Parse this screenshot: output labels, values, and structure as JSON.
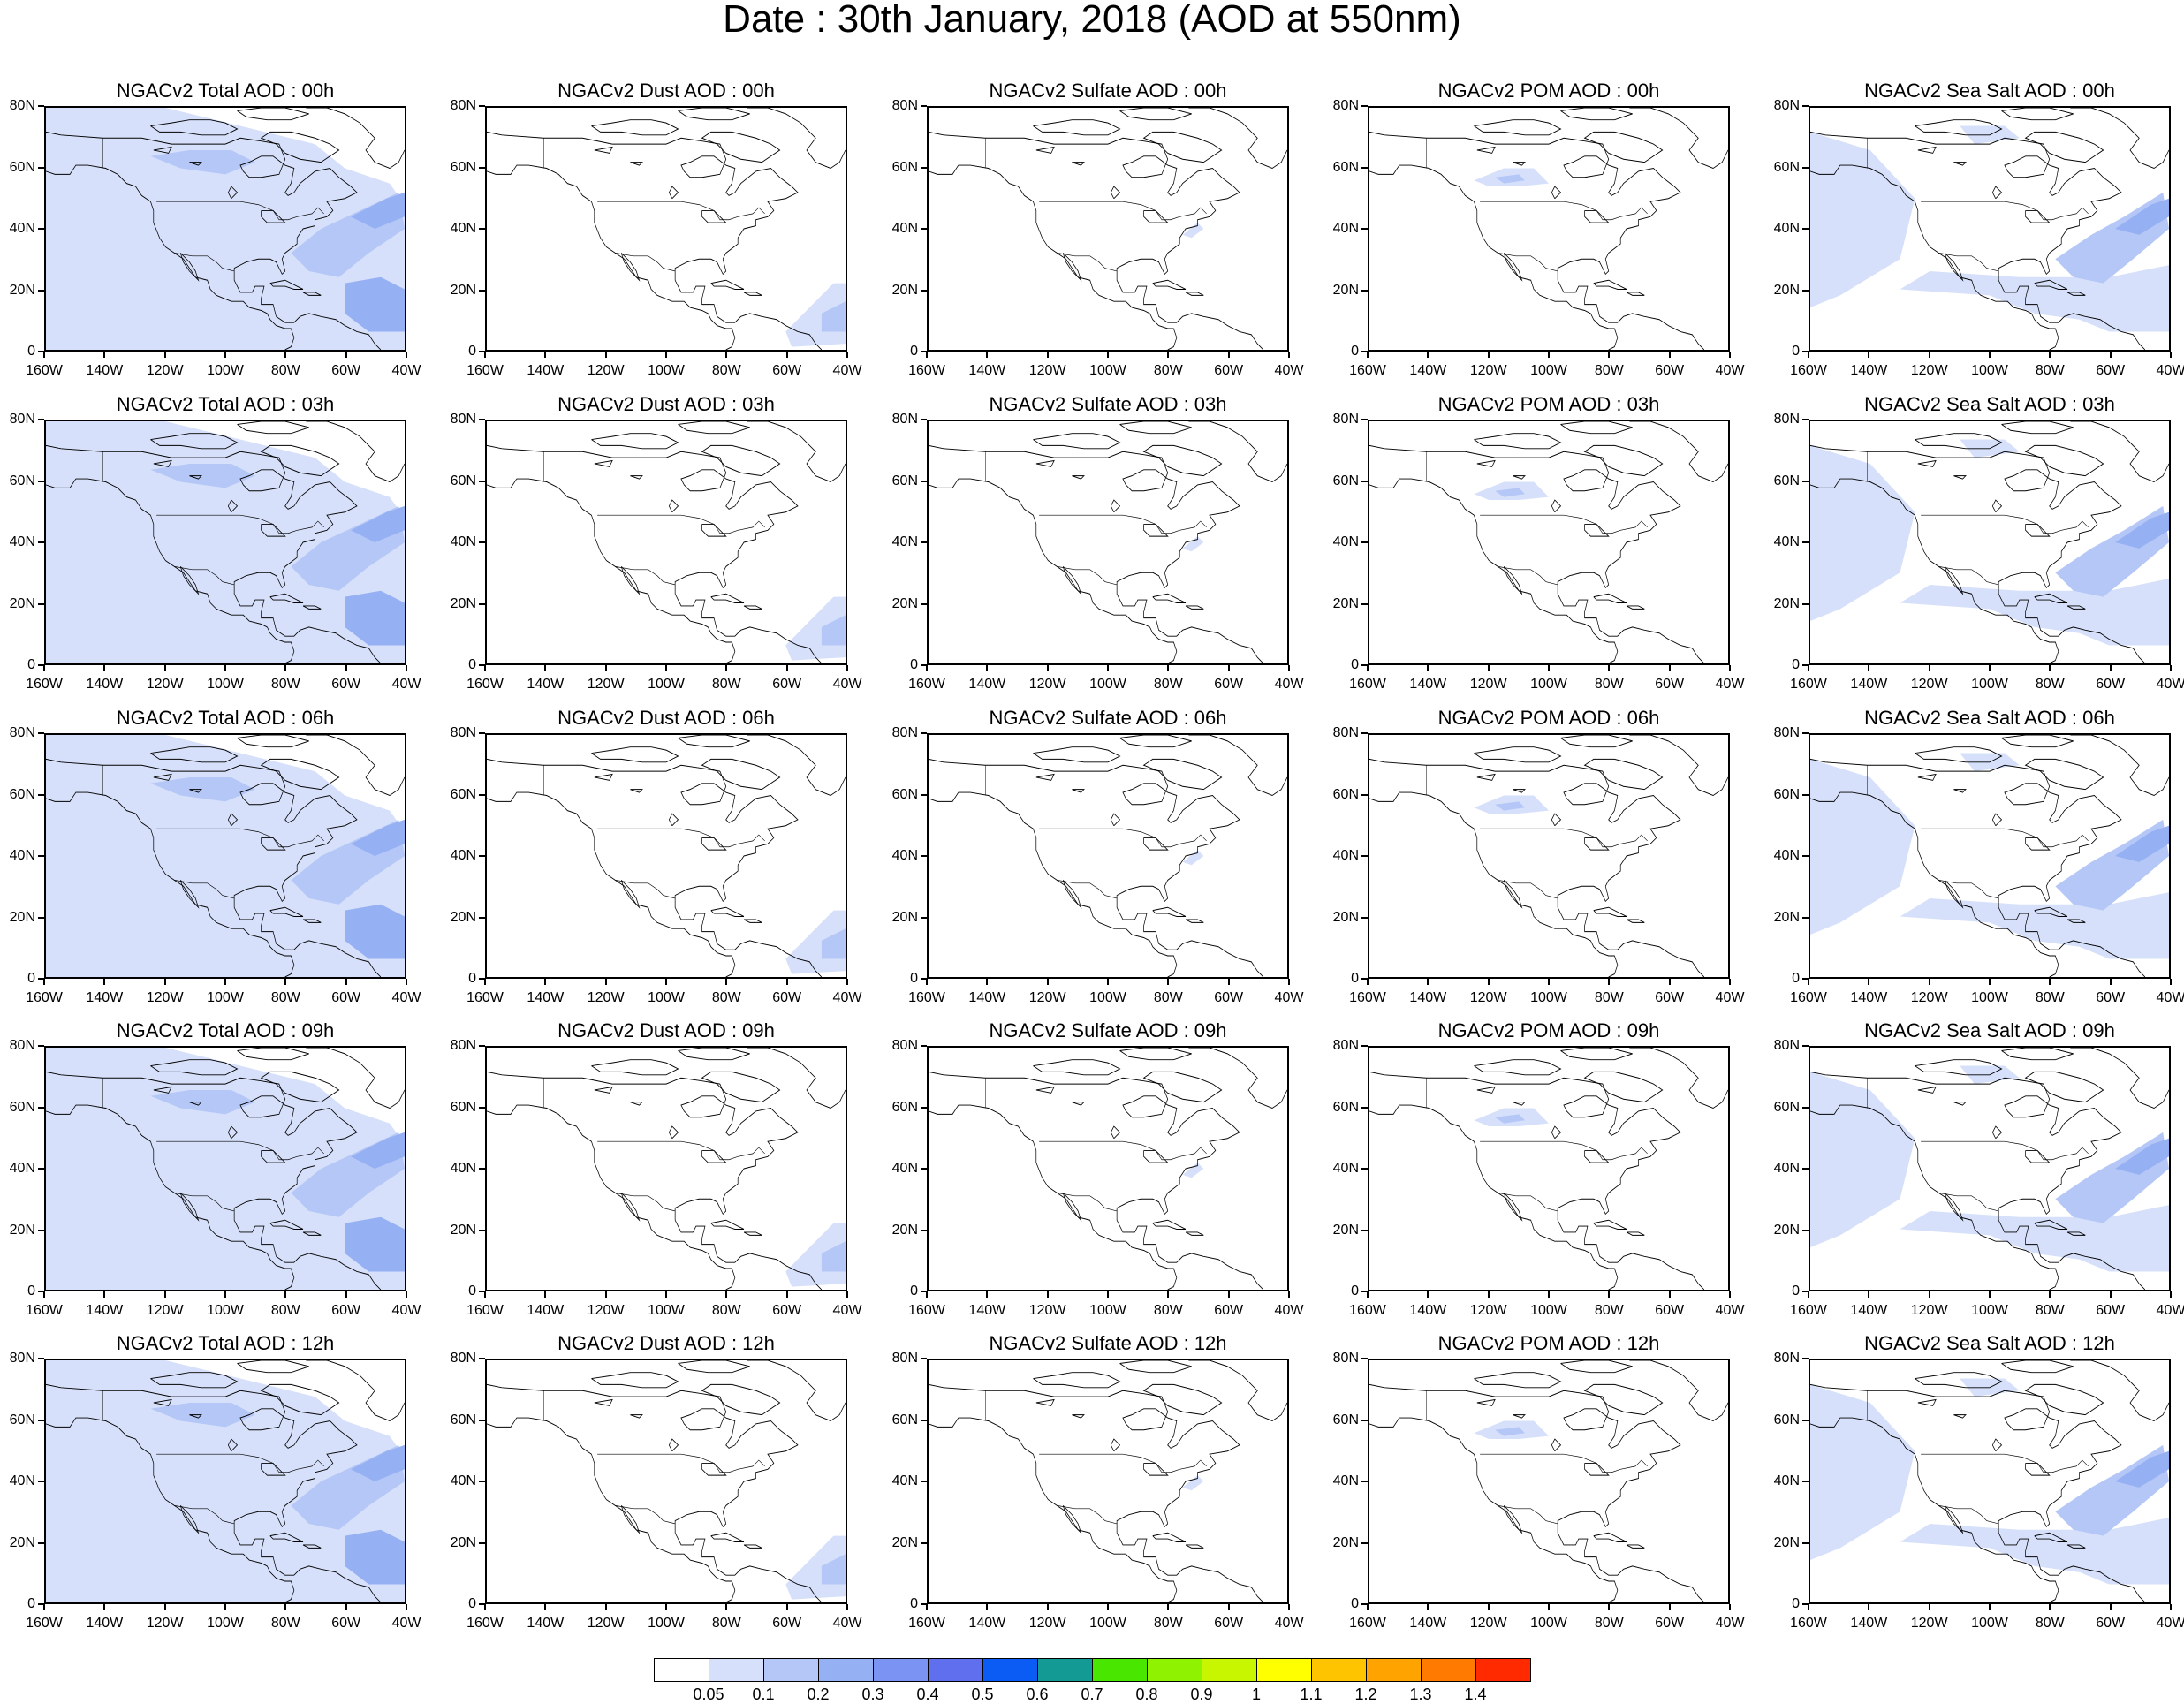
{
  "title": "Date : 30th January, 2018 (AOD at 550nm)",
  "lat_ticks": [
    "80N",
    "60N",
    "40N",
    "20N",
    "0"
  ],
  "lon_ticks": [
    "160W",
    "140W",
    "120W",
    "100W",
    "80W",
    "60W",
    "40W"
  ],
  "domain": {
    "lon_min": -160,
    "lon_max": -40,
    "lat_min": 0,
    "lat_max": 80
  },
  "panels": [
    [
      "NGACv2 Total AOD : 00h",
      "NGACv2 Dust AOD : 00h",
      "NGACv2 Sulfate AOD : 00h",
      "NGACv2 POM AOD : 00h",
      "NGACv2 Sea Salt AOD : 00h"
    ],
    [
      "NGACv2 Total AOD : 03h",
      "NGACv2 Dust AOD : 03h",
      "NGACv2 Sulfate AOD : 03h",
      "NGACv2 POM AOD : 03h",
      "NGACv2 Sea Salt AOD : 03h"
    ],
    [
      "NGACv2 Total AOD : 06h",
      "NGACv2 Dust AOD : 06h",
      "NGACv2 Sulfate AOD : 06h",
      "NGACv2 POM AOD : 06h",
      "NGACv2 Sea Salt AOD : 06h"
    ],
    [
      "NGACv2 Total AOD : 09h",
      "NGACv2 Dust AOD : 09h",
      "NGACv2 Sulfate AOD : 09h",
      "NGACv2 POM AOD : 09h",
      "NGACv2 Sea Salt  AOD : 09h"
    ],
    [
      "NGACv2 Total AOD  : 12h",
      "NGACv2 Dust AOD : 12h",
      "NGACv2 Sulfate AOD : 12h",
      "NGACv2 POM  AOD : 12h",
      "NGACv2 Sea Salt  AOD : 12h"
    ]
  ],
  "colorbar": {
    "colors": [
      "#ffffff",
      "#d6e0fa",
      "#b4c7f6",
      "#96b0f4",
      "#7b93f2",
      "#5f6fee",
      "#0a5cf5",
      "#139a94",
      "#49e600",
      "#8ff200",
      "#c8f500",
      "#ffff00",
      "#ffc400",
      "#ffa300",
      "#ff7a00",
      "#ff2a00"
    ],
    "labels": [
      "0.05",
      "0.1",
      "0.2",
      "0.3",
      "0.4",
      "0.5",
      "0.6",
      "0.7",
      "0.8",
      "0.9",
      "1",
      "1.1",
      "1.2",
      "1.3",
      "1.4"
    ]
  },
  "aerosol_shading": {
    "total": {
      "intensity": "light-to-moderate blue",
      "regions": [
        "north Pacific",
        "western Atlantic storm track",
        "Canadian Arctic",
        "Caribbean"
      ]
    },
    "dust": {
      "intensity": "light blue",
      "regions": [
        "tropical Atlantic off South America"
      ]
    },
    "sulfate": {
      "intensity": "very light",
      "regions": [
        "US east coast"
      ]
    },
    "pom": {
      "intensity": "light blue",
      "regions": [
        "western Canada plume"
      ]
    },
    "sea_salt": {
      "intensity": "light-to-moderate blue",
      "regions": [
        "north Pacific",
        "western Atlantic storm track",
        "Caribbean"
      ]
    }
  }
}
